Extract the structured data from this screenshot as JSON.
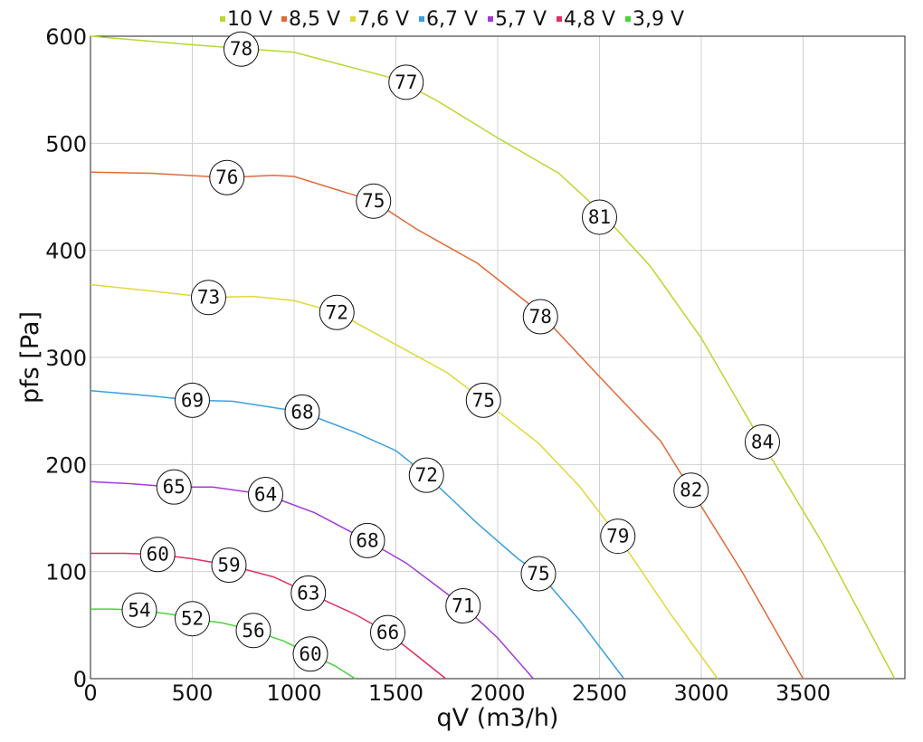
{
  "chart_data": {
    "type": "line",
    "title": "",
    "xlabel": "qV (m3/h)",
    "ylabel": "pfs [Pa]",
    "xlim": [
      0,
      4000
    ],
    "ylim": [
      0,
      600
    ],
    "x_ticks": [
      0,
      500,
      1000,
      1500,
      2000,
      2500,
      3000,
      3500
    ],
    "y_ticks": [
      0,
      100,
      200,
      300,
      400,
      500,
      600
    ],
    "grid": true,
    "legend_position": "top",
    "series": [
      {
        "name": "10 V",
        "color": "#b5d930",
        "points": [
          [
            0,
            600
          ],
          [
            500,
            592
          ],
          [
            1000,
            585
          ],
          [
            1200,
            575
          ],
          [
            1500,
            560
          ],
          [
            1700,
            540
          ],
          [
            2000,
            505
          ],
          [
            2300,
            472
          ],
          [
            2500,
            437
          ],
          [
            2750,
            385
          ],
          [
            3000,
            318
          ],
          [
            3300,
            220
          ],
          [
            3600,
            125
          ],
          [
            3950,
            0
          ]
        ],
        "labels": [
          {
            "x": 740,
            "y": 588,
            "text": "78"
          },
          {
            "x": 1550,
            "y": 557,
            "text": "77"
          },
          {
            "x": 2500,
            "y": 431,
            "text": "81"
          },
          {
            "x": 3300,
            "y": 221,
            "text": "84"
          }
        ]
      },
      {
        "name": "8,5 V",
        "color": "#e06a3a",
        "points": [
          [
            0,
            473
          ],
          [
            300,
            472
          ],
          [
            670,
            468
          ],
          [
            900,
            470
          ],
          [
            1000,
            469
          ],
          [
            1390,
            446
          ],
          [
            1600,
            420
          ],
          [
            1900,
            388
          ],
          [
            2200,
            343
          ],
          [
            2500,
            282
          ],
          [
            2800,
            222
          ],
          [
            2950,
            176
          ],
          [
            3200,
            100
          ],
          [
            3500,
            0
          ]
        ],
        "labels": [
          {
            "x": 670,
            "y": 468,
            "text": "76"
          },
          {
            "x": 1390,
            "y": 446,
            "text": "75"
          },
          {
            "x": 2210,
            "y": 338,
            "text": "78"
          },
          {
            "x": 2950,
            "y": 176,
            "text": "82"
          }
        ]
      },
      {
        "name": "7,6 V",
        "color": "#e0d83a",
        "points": [
          [
            0,
            368
          ],
          [
            300,
            362
          ],
          [
            580,
            356
          ],
          [
            800,
            357
          ],
          [
            1000,
            353
          ],
          [
            1210,
            342
          ],
          [
            1500,
            312
          ],
          [
            1750,
            286
          ],
          [
            1930,
            260
          ],
          [
            2200,
            220
          ],
          [
            2400,
            180
          ],
          [
            2590,
            133
          ],
          [
            2850,
            60
          ],
          [
            3080,
            0
          ]
        ],
        "labels": [
          {
            "x": 580,
            "y": 356,
            "text": "73"
          },
          {
            "x": 1210,
            "y": 342,
            "text": "72"
          },
          {
            "x": 1930,
            "y": 260,
            "text": "75"
          },
          {
            "x": 2590,
            "y": 133,
            "text": "79"
          }
        ]
      },
      {
        "name": "6,7 V",
        "color": "#3aa0e0",
        "points": [
          [
            0,
            269
          ],
          [
            300,
            264
          ],
          [
            500,
            260
          ],
          [
            700,
            259
          ],
          [
            1040,
            249
          ],
          [
            1300,
            230
          ],
          [
            1500,
            213
          ],
          [
            1650,
            190
          ],
          [
            1900,
            145
          ],
          [
            2100,
            112
          ],
          [
            2210,
            97
          ],
          [
            2400,
            55
          ],
          [
            2620,
            0
          ]
        ],
        "labels": [
          {
            "x": 500,
            "y": 260,
            "text": "69"
          },
          {
            "x": 1040,
            "y": 249,
            "text": "68"
          },
          {
            "x": 1650,
            "y": 190,
            "text": "72"
          },
          {
            "x": 2200,
            "y": 98,
            "text": "75"
          }
        ]
      },
      {
        "name": "5,7 V",
        "color": "#a33ad9",
        "points": [
          [
            0,
            184
          ],
          [
            200,
            182
          ],
          [
            410,
            179
          ],
          [
            600,
            179
          ],
          [
            860,
            172
          ],
          [
            1100,
            155
          ],
          [
            1360,
            129
          ],
          [
            1550,
            108
          ],
          [
            1830,
            68
          ],
          [
            2000,
            38
          ],
          [
            2175,
            0
          ]
        ],
        "labels": [
          {
            "x": 410,
            "y": 179,
            "text": "65"
          },
          {
            "x": 860,
            "y": 172,
            "text": "64"
          },
          {
            "x": 1360,
            "y": 129,
            "text": "68"
          },
          {
            "x": 1830,
            "y": 68,
            "text": "71"
          }
        ]
      },
      {
        "name": "4,8 V",
        "color": "#e0305f",
        "points": [
          [
            0,
            117
          ],
          [
            170,
            117
          ],
          [
            330,
            116
          ],
          [
            500,
            112
          ],
          [
            680,
            106
          ],
          [
            900,
            95
          ],
          [
            1070,
            80
          ],
          [
            1300,
            60
          ],
          [
            1460,
            43
          ],
          [
            1600,
            22
          ],
          [
            1745,
            0
          ]
        ],
        "labels": [
          {
            "x": 330,
            "y": 116,
            "text": "60"
          },
          {
            "x": 680,
            "y": 106,
            "text": "59"
          },
          {
            "x": 1070,
            "y": 80,
            "text": "63"
          },
          {
            "x": 1460,
            "y": 43,
            "text": "66"
          }
        ]
      },
      {
        "name": "3,9 V",
        "color": "#48d43a",
        "points": [
          [
            0,
            65
          ],
          [
            100,
            65
          ],
          [
            240,
            64
          ],
          [
            400,
            60
          ],
          [
            500,
            56
          ],
          [
            650,
            52
          ],
          [
            800,
            45
          ],
          [
            950,
            35
          ],
          [
            1080,
            23
          ],
          [
            1200,
            12
          ],
          [
            1300,
            0
          ]
        ],
        "labels": [
          {
            "x": 240,
            "y": 64,
            "text": "54"
          },
          {
            "x": 500,
            "y": 56,
            "text": "52"
          },
          {
            "x": 800,
            "y": 45,
            "text": "56"
          },
          {
            "x": 1080,
            "y": 23,
            "text": "60"
          }
        ]
      }
    ]
  }
}
